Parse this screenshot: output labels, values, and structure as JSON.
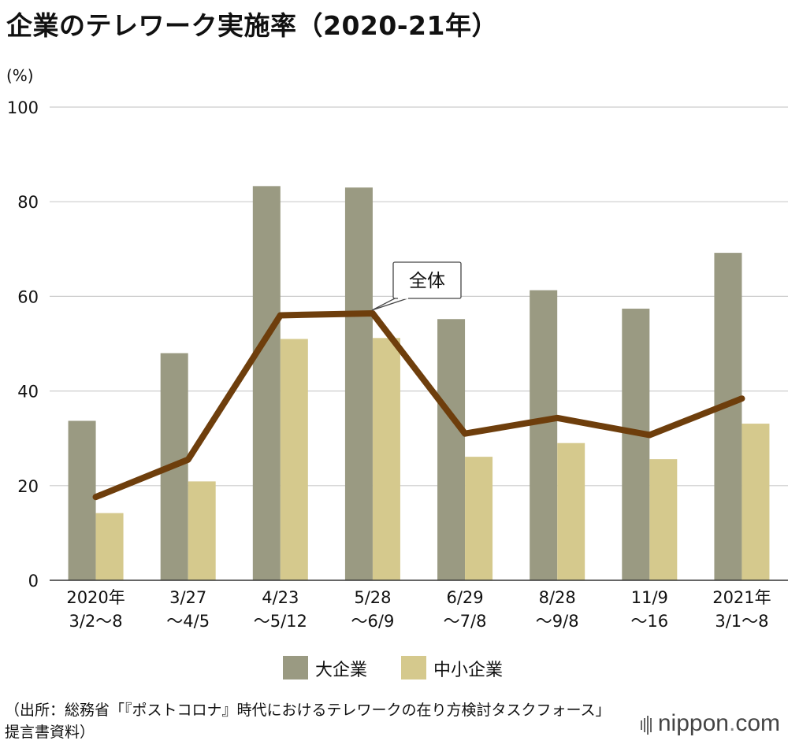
{
  "title": "企業のテレワーク実施率（2020-21年）",
  "unit_label": "(%)",
  "source": "（出所：総務省「『ポストコロナ』時代におけるテレワークの在り方検討タスクフォース」提言書資料）",
  "brand": {
    "main": "nippon",
    "dot": ".",
    "suffix": "com"
  },
  "colors": {
    "large": "#9a9a82",
    "small": "#d5c98d",
    "total": "#6e3e0c",
    "grid": "#cccccc"
  },
  "chart_data": {
    "type": "bar",
    "title": "企業のテレワーク実施率（2020-21年）",
    "ylabel": "(%)",
    "ylim": [
      0,
      100
    ],
    "yticks": [
      0,
      20,
      40,
      60,
      80,
      100
    ],
    "grid": true,
    "legend_position": "bottom",
    "categories": [
      [
        "2020年",
        "3/2～8"
      ],
      [
        "3/27",
        "～4/5"
      ],
      [
        "4/23",
        "～5/12"
      ],
      [
        "5/28",
        "～6/9"
      ],
      [
        "6/29",
        "～7/8"
      ],
      [
        "8/28",
        "～9/8"
      ],
      [
        "11/9",
        "～16"
      ],
      [
        "2021年",
        "3/1～8"
      ]
    ],
    "series": [
      {
        "name": "大企業",
        "type": "bar",
        "values": [
          33.7,
          48.0,
          83.3,
          83.0,
          55.2,
          61.3,
          57.4,
          69.2
        ]
      },
      {
        "name": "中小企業",
        "type": "bar",
        "values": [
          14.2,
          20.9,
          51.0,
          51.2,
          26.1,
          29.0,
          25.6,
          33.1
        ]
      },
      {
        "name": "全体",
        "type": "line",
        "values": [
          17.6,
          25.5,
          56.0,
          56.4,
          31.0,
          34.3,
          30.7,
          38.4
        ]
      }
    ],
    "annotations": [
      {
        "text": "全体",
        "target_series": "全体",
        "target_index": 3
      }
    ]
  }
}
